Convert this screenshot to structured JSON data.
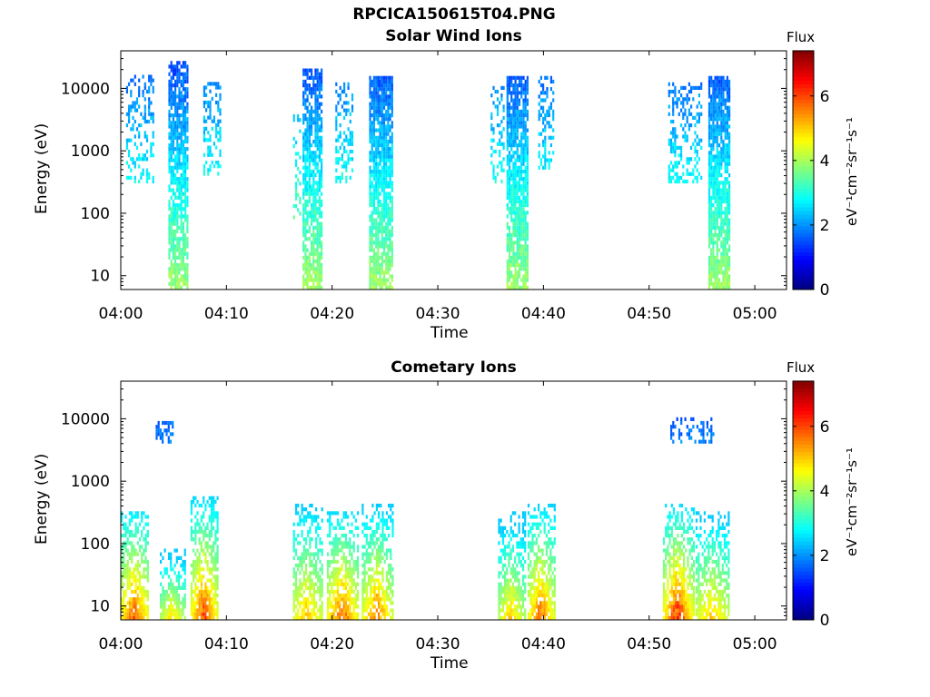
{
  "figure": {
    "main_title": "RPCICA150615T04.PNG"
  },
  "colorbar": {
    "title": "Flux",
    "unit_label": "eV⁻¹cm⁻²sr⁻¹s⁻¹",
    "ticks": [
      "0",
      "2",
      "4",
      "6"
    ],
    "range": [
      0,
      7.4
    ],
    "colormap": "jet"
  },
  "chart_data": [
    {
      "type": "heatmap",
      "title": "Solar Wind Ions",
      "xlabel": "Time",
      "ylabel": "Energy (eV)",
      "x_ticks": [
        "04:00",
        "04:10",
        "04:20",
        "04:30",
        "04:40",
        "04:50",
        "05:00"
      ],
      "y_ticks": [
        "10",
        "100",
        "1000",
        "10000"
      ],
      "y_scale": "log",
      "xlim_minutes": [
        0,
        63
      ],
      "ylim_eV": [
        6,
        40000
      ],
      "bursts": [
        {
          "t_start": 0.5,
          "t_end": 3.0,
          "e_low": 300,
          "e_high": 15000,
          "flux": 1.4,
          "density": 0.35
        },
        {
          "t_start": 4.5,
          "t_end": 6.3,
          "e_low": 6,
          "e_high": 25000,
          "flux": 1.3,
          "density": 0.8
        },
        {
          "t_start": 7.8,
          "t_end": 9.5,
          "e_low": 400,
          "e_high": 12000,
          "flux": 1.5,
          "density": 0.4
        },
        {
          "t_start": 16.3,
          "t_end": 17.0,
          "e_low": 80,
          "e_high": 4000,
          "flux": 1.6,
          "density": 0.3
        },
        {
          "t_start": 17.2,
          "t_end": 19.0,
          "e_low": 6,
          "e_high": 20000,
          "flux": 1.3,
          "density": 0.8
        },
        {
          "t_start": 20.3,
          "t_end": 22.0,
          "e_low": 300,
          "e_high": 12000,
          "flux": 1.5,
          "density": 0.4
        },
        {
          "t_start": 23.5,
          "t_end": 25.6,
          "e_low": 6,
          "e_high": 15000,
          "flux": 1.3,
          "density": 0.85
        },
        {
          "t_start": 35.0,
          "t_end": 36.2,
          "e_low": 300,
          "e_high": 10000,
          "flux": 1.5,
          "density": 0.35
        },
        {
          "t_start": 36.5,
          "t_end": 38.4,
          "e_low": 6,
          "e_high": 15000,
          "flux": 1.3,
          "density": 0.85
        },
        {
          "t_start": 39.5,
          "t_end": 41.0,
          "e_low": 500,
          "e_high": 15000,
          "flux": 1.4,
          "density": 0.4
        },
        {
          "t_start": 51.8,
          "t_end": 55.0,
          "e_low": 300,
          "e_high": 12000,
          "flux": 1.4,
          "density": 0.35
        },
        {
          "t_start": 55.6,
          "t_end": 57.6,
          "e_low": 6,
          "e_high": 15000,
          "flux": 1.3,
          "density": 0.85
        }
      ]
    },
    {
      "type": "heatmap",
      "title": "Cometary Ions",
      "xlabel": "Time",
      "ylabel": "Energy (eV)",
      "x_ticks": [
        "04:00",
        "04:10",
        "04:20",
        "04:30",
        "04:40",
        "04:50",
        "05:00"
      ],
      "y_ticks": [
        "10",
        "100",
        "1000",
        "10000"
      ],
      "y_scale": "log",
      "xlim_minutes": [
        0,
        63
      ],
      "ylim_eV": [
        6,
        40000
      ],
      "bursts": [
        {
          "t_start": 0.0,
          "t_end": 2.6,
          "e_low": 6,
          "e_high": 300,
          "flux": 4.6,
          "density": 0.9,
          "core": 6.0
        },
        {
          "t_start": 3.7,
          "t_end": 6.0,
          "e_low": 6,
          "e_high": 80,
          "flux": 4.0,
          "density": 0.85,
          "core": 5.0
        },
        {
          "t_start": 6.6,
          "t_end": 9.2,
          "e_low": 6,
          "e_high": 500,
          "flux": 4.5,
          "density": 0.9,
          "core": 6.2
        },
        {
          "t_start": 3.3,
          "t_end": 5.0,
          "e_low": 4000,
          "e_high": 8000,
          "flux": 1.2,
          "density": 0.6
        },
        {
          "t_start": 16.3,
          "t_end": 19.0,
          "e_low": 6,
          "e_high": 400,
          "flux": 4.3,
          "density": 0.85,
          "core": 5.2
        },
        {
          "t_start": 19.5,
          "t_end": 22.5,
          "e_low": 6,
          "e_high": 300,
          "flux": 4.5,
          "density": 0.9,
          "core": 6.0
        },
        {
          "t_start": 22.8,
          "t_end": 25.8,
          "e_low": 6,
          "e_high": 400,
          "flux": 4.3,
          "density": 0.85,
          "core": 5.8
        },
        {
          "t_start": 35.7,
          "t_end": 38.2,
          "e_low": 6,
          "e_high": 300,
          "flux": 4.0,
          "density": 0.85,
          "core": 5.2
        },
        {
          "t_start": 38.5,
          "t_end": 41.0,
          "e_low": 6,
          "e_high": 400,
          "flux": 4.4,
          "density": 0.9,
          "core": 6.0
        },
        {
          "t_start": 51.3,
          "t_end": 54.2,
          "e_low": 6,
          "e_high": 400,
          "flux": 4.5,
          "density": 0.9,
          "core": 6.5
        },
        {
          "t_start": 54.4,
          "t_end": 57.6,
          "e_low": 6,
          "e_high": 300,
          "flux": 4.2,
          "density": 0.85,
          "core": 5.2
        },
        {
          "t_start": 52.0,
          "t_end": 56.0,
          "e_low": 4000,
          "e_high": 10000,
          "flux": 1.2,
          "density": 0.4
        }
      ]
    }
  ]
}
